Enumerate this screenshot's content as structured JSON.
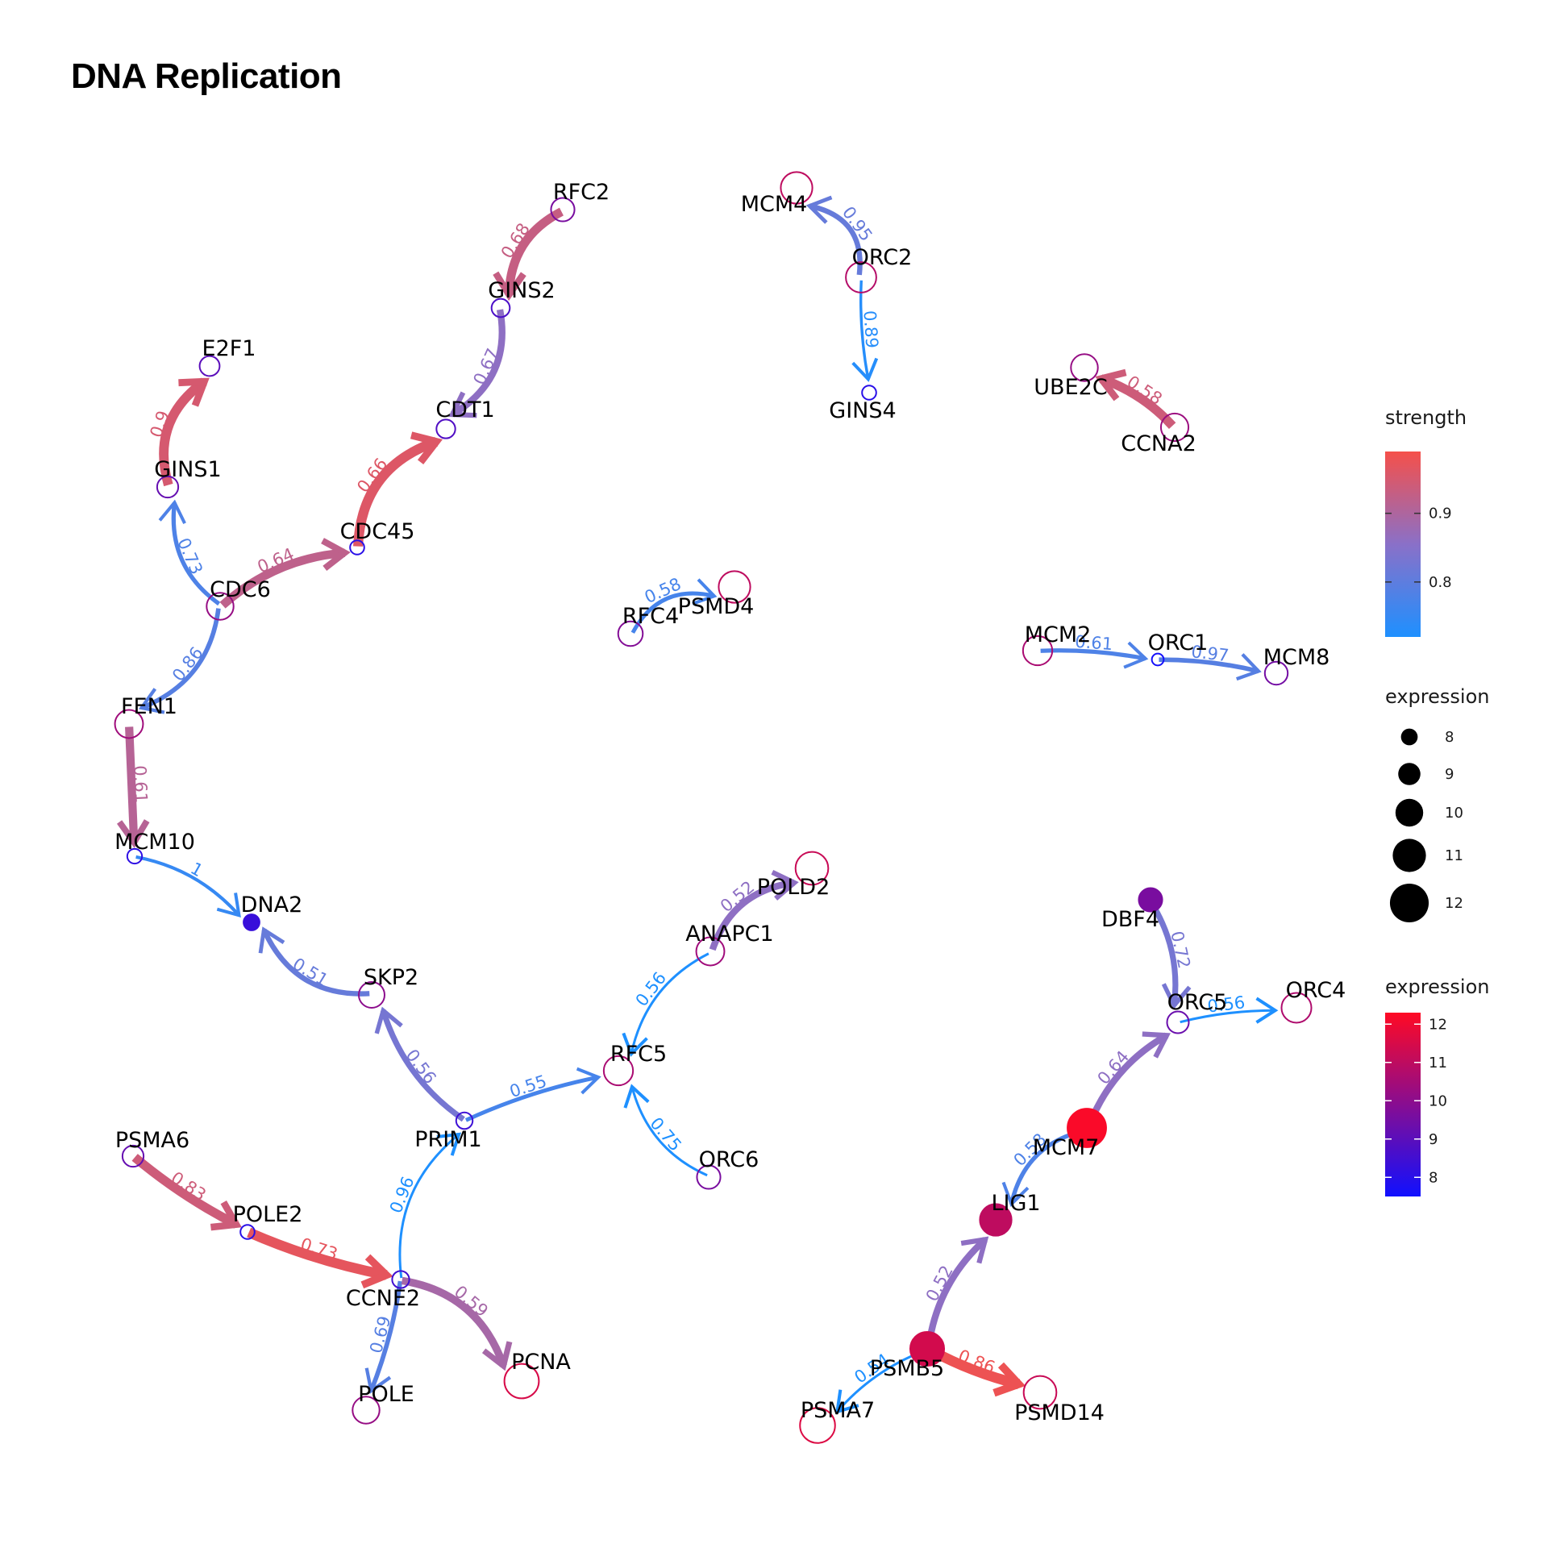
{
  "title": "DNA Replication",
  "scales": {
    "strength": {
      "min": 0.72,
      "max": 0.99,
      "low_color": "#1e90ff",
      "mid_color": "#8a70c8",
      "high_color": "#f5504a"
    },
    "expression": {
      "min": 7.5,
      "max": 12.3,
      "low_color": "#1010ff",
      "high_color": "#ff0a24"
    }
  },
  "legends": {
    "strength": {
      "title": "strength",
      "ticks": [
        "0.9",
        "0.8"
      ],
      "tick_values": [
        0.9,
        0.8
      ]
    },
    "expression_size": {
      "title": "expression",
      "ticks": [
        "8",
        "9",
        "10",
        "11",
        "12"
      ],
      "tick_values": [
        8,
        9,
        10,
        11,
        12
      ]
    },
    "expression_color": {
      "title": "expression",
      "ticks": [
        "12",
        "11",
        "10",
        "9",
        "8"
      ],
      "tick_values": [
        12,
        11,
        10,
        9,
        8
      ]
    }
  },
  "nodes": [
    {
      "id": "MCM4",
      "expression": 11.0,
      "filled": false
    },
    {
      "id": "ORC2",
      "expression": 10.8,
      "filled": false
    },
    {
      "id": "GINS4",
      "expression": 8.0,
      "filled": false
    },
    {
      "id": "RFC2",
      "expression": 9.6,
      "filled": false
    },
    {
      "id": "GINS2",
      "expression": 8.7,
      "filled": false
    },
    {
      "id": "CDT1",
      "expression": 8.8,
      "filled": false
    },
    {
      "id": "E2F1",
      "expression": 9.0,
      "filled": false
    },
    {
      "id": "GINS1",
      "expression": 9.2,
      "filled": false
    },
    {
      "id": "CDC45",
      "expression": 8.0,
      "filled": false
    },
    {
      "id": "CDC6",
      "expression": 10.2,
      "filled": false
    },
    {
      "id": "FEN1",
      "expression": 10.4,
      "filled": false
    },
    {
      "id": "MCM10",
      "expression": 8.1,
      "filled": false
    },
    {
      "id": "DNA2",
      "expression": 8.3,
      "filled": true
    },
    {
      "id": "UBE2C",
      "expression": 10.2,
      "filled": false
    },
    {
      "id": "CCNA2",
      "expression": 10.3,
      "filled": false
    },
    {
      "id": "PSMD4",
      "expression": 11.0,
      "filled": false
    },
    {
      "id": "RFC4",
      "expression": 9.8,
      "filled": false
    },
    {
      "id": "MCM2",
      "expression": 10.6,
      "filled": false
    },
    {
      "id": "ORC1",
      "expression": 7.6,
      "filled": false
    },
    {
      "id": "MCM8",
      "expression": 9.5,
      "filled": false
    },
    {
      "id": "POLD2",
      "expression": 11.2,
      "filled": false
    },
    {
      "id": "ANAPC1",
      "expression": 10.4,
      "filled": false
    },
    {
      "id": "SKP2",
      "expression": 10.0,
      "filled": false
    },
    {
      "id": "PRIM1",
      "expression": 8.4,
      "filled": false
    },
    {
      "id": "RFC5",
      "expression": 10.6,
      "filled": false
    },
    {
      "id": "ORC6",
      "expression": 9.6,
      "filled": false
    },
    {
      "id": "DBF4",
      "expression": 9.6,
      "filled": true
    },
    {
      "id": "ORC5",
      "expression": 9.3,
      "filled": false
    },
    {
      "id": "ORC4",
      "expression": 10.7,
      "filled": false
    },
    {
      "id": "MCM7",
      "expression": 12.2,
      "filled": true
    },
    {
      "id": "LIG1",
      "expression": 11.0,
      "filled": true
    },
    {
      "id": "PSMA6",
      "expression": 9.2,
      "filled": false
    },
    {
      "id": "POLE2",
      "expression": 8.0,
      "filled": false
    },
    {
      "id": "CCNE2",
      "expression": 8.5,
      "filled": false
    },
    {
      "id": "POLE",
      "expression": 10.2,
      "filled": false
    },
    {
      "id": "PCNA",
      "expression": 11.5,
      "filled": false
    },
    {
      "id": "PSMB5",
      "expression": 11.4,
      "filled": true
    },
    {
      "id": "PSMA7",
      "expression": 11.6,
      "filled": false
    },
    {
      "id": "PSMD14",
      "expression": 11.2,
      "filled": false
    }
  ],
  "edges": [
    {
      "source": "ORC2",
      "target": "MCM4",
      "strength": 0.81,
      "label": "0.95"
    },
    {
      "source": "ORC2",
      "target": "GINS4",
      "strength": 0.73,
      "label": "0.89"
    },
    {
      "source": "RFC2",
      "target": "GINS2",
      "strength": 0.93,
      "label": "0.68"
    },
    {
      "source": "GINS2",
      "target": "CDT1",
      "strength": 0.86,
      "label": "0.67"
    },
    {
      "source": "CDC45",
      "target": "CDT1",
      "strength": 0.96,
      "label": "0.66"
    },
    {
      "source": "GINS1",
      "target": "E2F1",
      "strength": 0.95,
      "label": "0.9"
    },
    {
      "source": "CDC6",
      "target": "GINS1",
      "strength": 0.78,
      "label": "0.73"
    },
    {
      "source": "CDC6",
      "target": "CDC45",
      "strength": 0.92,
      "label": "0.64"
    },
    {
      "source": "CDC6",
      "target": "FEN1",
      "strength": 0.79,
      "label": "0.86"
    },
    {
      "source": "FEN1",
      "target": "MCM10",
      "strength": 0.91,
      "label": "0.61"
    },
    {
      "source": "MCM10",
      "target": "DNA2",
      "strength": 0.75,
      "label": "1"
    },
    {
      "source": "CCNA2",
      "target": "UBE2C",
      "strength": 0.94,
      "label": "0.58"
    },
    {
      "source": "RFC4",
      "target": "PSMD4",
      "strength": 0.77,
      "label": "0.58"
    },
    {
      "source": "MCM2",
      "target": "ORC1",
      "strength": 0.78,
      "label": "0.61"
    },
    {
      "source": "ORC1",
      "target": "MCM8",
      "strength": 0.79,
      "label": "0.97"
    },
    {
      "source": "ANAPC1",
      "target": "POLD2",
      "strength": 0.86,
      "label": "0.52"
    },
    {
      "source": "ANAPC1",
      "target": "RFC5",
      "strength": 0.72,
      "label": "0.56"
    },
    {
      "source": "SKP2",
      "target": "DNA2",
      "strength": 0.81,
      "label": "0.51"
    },
    {
      "source": "PRIM1",
      "target": "SKP2",
      "strength": 0.83,
      "label": "0.56"
    },
    {
      "source": "PRIM1",
      "target": "RFC5",
      "strength": 0.77,
      "label": "0.55"
    },
    {
      "source": "ORC6",
      "target": "RFC5",
      "strength": 0.72,
      "label": "0.75"
    },
    {
      "source": "DBF4",
      "target": "ORC5",
      "strength": 0.83,
      "label": "0.72"
    },
    {
      "source": "ORC5",
      "target": "ORC4",
      "strength": 0.72,
      "label": "0.56"
    },
    {
      "source": "MCM7",
      "target": "ORC5",
      "strength": 0.86,
      "label": "0.64"
    },
    {
      "source": "MCM7",
      "target": "LIG1",
      "strength": 0.78,
      "label": "0.58"
    },
    {
      "source": "PSMA6",
      "target": "POLE2",
      "strength": 0.94,
      "label": "0.83"
    },
    {
      "source": "POLE2",
      "target": "CCNE2",
      "strength": 0.97,
      "label": "0.73"
    },
    {
      "source": "CCNE2",
      "target": "PRIM1",
      "strength": 0.72,
      "label": "0.96"
    },
    {
      "source": "CCNE2",
      "target": "POLE",
      "strength": 0.79,
      "label": "0.69"
    },
    {
      "source": "CCNE2",
      "target": "PCNA",
      "strength": 0.89,
      "label": "0.59"
    },
    {
      "source": "PSMB5",
      "target": "LIG1",
      "strength": 0.86,
      "label": "0.52"
    },
    {
      "source": "PSMB5",
      "target": "PSMD14",
      "strength": 0.98,
      "label": "0.86"
    },
    {
      "source": "PSMB5",
      "target": "PSMA7",
      "strength": 0.72,
      "label": "0.54"
    }
  ]
}
